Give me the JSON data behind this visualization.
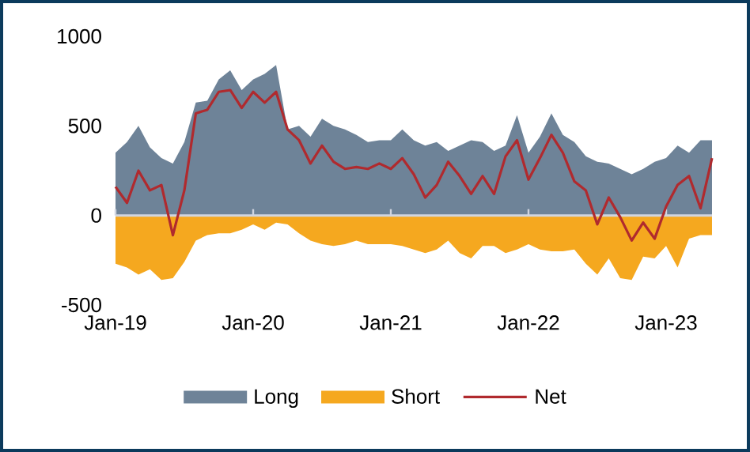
{
  "chart_data": {
    "type": "area",
    "x": [
      "2019-01",
      "2019-02",
      "2019-03",
      "2019-04",
      "2019-05",
      "2019-06",
      "2019-07",
      "2019-08",
      "2019-09",
      "2019-10",
      "2019-11",
      "2019-12",
      "2020-01",
      "2020-02",
      "2020-03",
      "2020-04",
      "2020-05",
      "2020-06",
      "2020-07",
      "2020-08",
      "2020-09",
      "2020-10",
      "2020-11",
      "2020-12",
      "2021-01",
      "2021-02",
      "2021-03",
      "2021-04",
      "2021-05",
      "2021-06",
      "2021-07",
      "2021-08",
      "2021-09",
      "2021-10",
      "2021-11",
      "2021-12",
      "2022-01",
      "2022-02",
      "2022-03",
      "2022-04",
      "2022-05",
      "2022-06",
      "2022-07",
      "2022-08",
      "2022-09",
      "2022-10",
      "2022-11",
      "2022-12",
      "2023-01",
      "2023-02",
      "2023-03",
      "2023-04",
      "2023-05"
    ],
    "series": [
      {
        "name": "Long",
        "color": "#6e8398",
        "values": [
          350,
          410,
          500,
          380,
          320,
          290,
          410,
          630,
          640,
          760,
          810,
          700,
          760,
          790,
          840,
          480,
          500,
          440,
          540,
          500,
          480,
          450,
          410,
          420,
          420,
          480,
          420,
          390,
          410,
          360,
          390,
          420,
          410,
          360,
          390,
          560,
          350,
          440,
          570,
          450,
          410,
          330,
          300,
          290,
          260,
          230,
          260,
          300,
          320,
          390,
          350,
          420,
          420
        ]
      },
      {
        "name": "Short",
        "color": "#f5a81f",
        "values": [
          -270,
          -290,
          -330,
          -300,
          -360,
          -350,
          -260,
          -140,
          -110,
          -100,
          -100,
          -80,
          -50,
          -80,
          -40,
          -50,
          -100,
          -140,
          -160,
          -170,
          -160,
          -140,
          -160,
          -160,
          -160,
          -170,
          -190,
          -210,
          -190,
          -140,
          -210,
          -240,
          -170,
          -170,
          -210,
          -190,
          -160,
          -190,
          -200,
          -200,
          -190,
          -270,
          -330,
          -240,
          -350,
          -360,
          -230,
          -240,
          -170,
          -290,
          -130,
          -110,
          -110
        ]
      },
      {
        "name": "Net",
        "type": "line",
        "color": "#b02a2e",
        "values": [
          160,
          70,
          250,
          140,
          170,
          -110,
          140,
          570,
          590,
          690,
          700,
          600,
          690,
          630,
          690,
          480,
          420,
          290,
          390,
          300,
          260,
          270,
          260,
          290,
          260,
          320,
          230,
          100,
          170,
          300,
          220,
          120,
          220,
          120,
          330,
          420,
          200,
          320,
          450,
          350,
          190,
          140,
          -50,
          100,
          -10,
          -140,
          -40,
          -130,
          50,
          170,
          220,
          40,
          320
        ]
      }
    ],
    "xlim": [
      "2019-01",
      "2023-05"
    ],
    "xticks": [
      {
        "value": "2019-01",
        "label": "Jan-19"
      },
      {
        "value": "2020-01",
        "label": "Jan-20"
      },
      {
        "value": "2021-01",
        "label": "Jan-21"
      },
      {
        "value": "2022-01",
        "label": "Jan-22"
      },
      {
        "value": "2023-01",
        "label": "Jan-23"
      }
    ],
    "ylim": [
      -500,
      1000
    ],
    "yticks": [
      -500,
      0,
      500,
      1000
    ],
    "legend": "bottom"
  }
}
